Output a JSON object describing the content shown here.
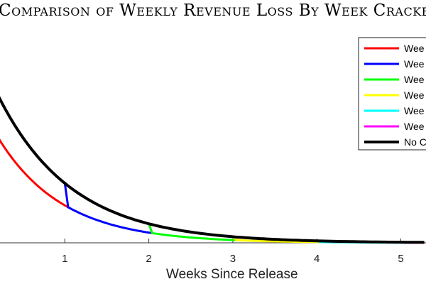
{
  "chart_data": {
    "type": "line",
    "title": "Comparison of Weekly Revenue Loss By Week Cracked",
    "xlabel": "Weeks Since Release",
    "ylabel": "",
    "xlim": [
      0,
      5.28
    ],
    "x_ticks": [
      1,
      2,
      3,
      4,
      5
    ],
    "grid": false,
    "legend_position": "top-right",
    "baseline": {
      "name": "No C",
      "color": "#000000",
      "y0": 0.82,
      "decay": 1.14
    },
    "cracked": {
      "y0": 0.605,
      "decay": 1.3
    },
    "series": [
      {
        "name": "Wee",
        "color": "#ff0000",
        "crack_week": 0
      },
      {
        "name": "Wee",
        "color": "#0000ff",
        "crack_week": 1
      },
      {
        "name": "Wee",
        "color": "#00ff00",
        "crack_week": 2
      },
      {
        "name": "Wee",
        "color": "#ffff00",
        "crack_week": 3
      },
      {
        "name": "Wee",
        "color": "#00ffff",
        "crack_week": 4
      },
      {
        "name": "Wee",
        "color": "#ff00ff",
        "crack_week": 5
      }
    ]
  }
}
